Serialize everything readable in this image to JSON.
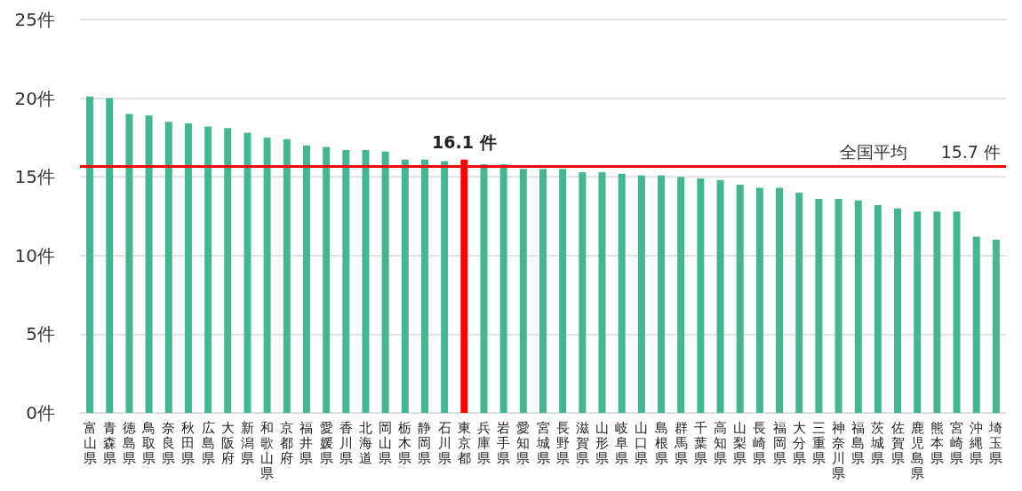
{
  "chart_data": {
    "type": "bar",
    "categories": [
      "富山県",
      "青森県",
      "徳島県",
      "鳥取県",
      "奈良県",
      "秋田県",
      "広島県",
      "大阪府",
      "新潟県",
      "和歌山県",
      "京都府",
      "福井県",
      "愛媛県",
      "香川県",
      "北海道",
      "岡山県",
      "栃木県",
      "静岡県",
      "石川県",
      "東京都",
      "兵庫県",
      "岩手県",
      "愛知県",
      "宮城県",
      "長野県",
      "滋賀県",
      "山形県",
      "岐阜県",
      "山口県",
      "島根県",
      "群馬県",
      "千葉県",
      "高知県",
      "山梨県",
      "長崎県",
      "福岡県",
      "大分県",
      "三重県",
      "神奈川県",
      "福島県",
      "茨城県",
      "佐賀県",
      "鹿児島県",
      "熊本県",
      "宮崎県",
      "沖縄県",
      "埼玉県"
    ],
    "values": [
      20.1,
      20.0,
      19.0,
      18.9,
      18.5,
      18.4,
      18.2,
      18.1,
      17.8,
      17.5,
      17.4,
      17.0,
      16.9,
      16.7,
      16.7,
      16.6,
      16.1,
      16.1,
      16.0,
      16.1,
      15.8,
      15.8,
      15.5,
      15.5,
      15.5,
      15.3,
      15.3,
      15.2,
      15.1,
      15.1,
      15.0,
      14.9,
      14.8,
      14.5,
      14.3,
      14.3,
      14.0,
      13.6,
      13.6,
      13.5,
      13.2,
      13.0,
      12.8,
      12.8,
      12.8,
      11.2,
      11.0
    ],
    "colors": [
      "#43b794",
      "#43b794",
      "#43b794",
      "#43b794",
      "#43b794",
      "#43b794",
      "#43b794",
      "#43b794",
      "#43b794",
      "#43b794",
      "#43b794",
      "#43b794",
      "#43b794",
      "#43b794",
      "#43b794",
      "#43b794",
      "#43b794",
      "#43b794",
      "#43b794",
      "#ff0000",
      "#43b794",
      "#43b794",
      "#43b794",
      "#43b794",
      "#43b794",
      "#43b794",
      "#43b794",
      "#43b794",
      "#43b794",
      "#43b794",
      "#43b794",
      "#43b794",
      "#43b794",
      "#43b794",
      "#43b794",
      "#43b794",
      "#43b794",
      "#43b794",
      "#43b794",
      "#43b794",
      "#43b794",
      "#43b794",
      "#43b794",
      "#43b794",
      "#43b794",
      "#43b794",
      "#43b794"
    ],
    "value_labels": [
      null,
      null,
      null,
      null,
      null,
      null,
      null,
      null,
      null,
      null,
      null,
      null,
      null,
      null,
      null,
      null,
      null,
      null,
      null,
      "16.1 件",
      null,
      null,
      null,
      null,
      null,
      null,
      null,
      null,
      null,
      null,
      null,
      null,
      null,
      null,
      null,
      null,
      null,
      null,
      null,
      null,
      null,
      null,
      null,
      null,
      null,
      null,
      null
    ],
    "ylim": [
      0,
      25
    ],
    "yticks": [
      {
        "value": 0,
        "label": "0件"
      },
      {
        "value": 5,
        "label": "5件"
      },
      {
        "value": 10,
        "label": "10件"
      },
      {
        "value": 15,
        "label": "15件"
      },
      {
        "value": 20,
        "label": "20件"
      },
      {
        "value": 25,
        "label": "25件"
      }
    ],
    "ref_lines": [
      {
        "axis": "y",
        "value": 15.7,
        "label": "全国平均　　15.7 件",
        "color": "#ff0000"
      }
    ],
    "grid": "y"
  }
}
